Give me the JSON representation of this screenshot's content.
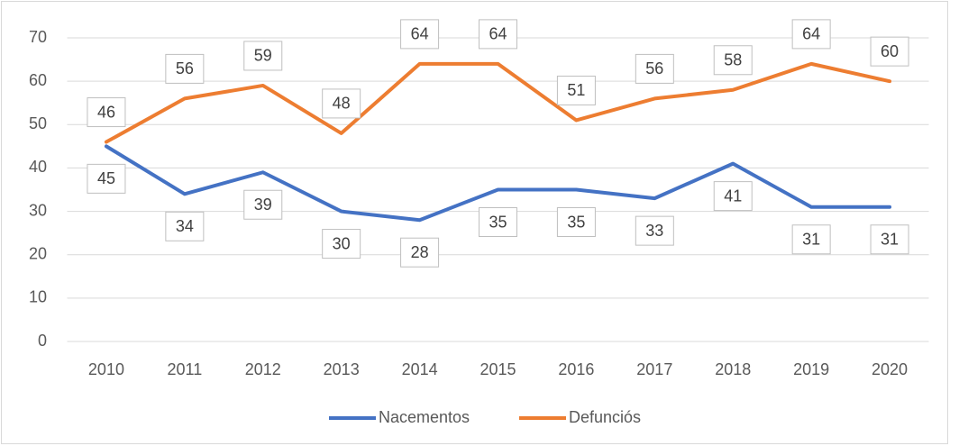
{
  "chart_data": {
    "type": "line",
    "categories": [
      "2010",
      "2011",
      "2012",
      "2013",
      "2014",
      "2015",
      "2016",
      "2017",
      "2018",
      "2019",
      "2020"
    ],
    "series": [
      {
        "name": "Nacementos",
        "color": "#4472c4",
        "values": [
          45,
          34,
          39,
          30,
          28,
          35,
          35,
          33,
          41,
          31,
          31
        ]
      },
      {
        "name": "Defunciós",
        "color": "#ed7d31",
        "values": [
          46,
          56,
          59,
          48,
          64,
          64,
          51,
          56,
          58,
          64,
          60
        ]
      }
    ],
    "ylim": [
      0,
      70
    ],
    "yticks": [
      0,
      10,
      20,
      30,
      40,
      50,
      60,
      70
    ],
    "grid": true,
    "legend": "bottom"
  }
}
